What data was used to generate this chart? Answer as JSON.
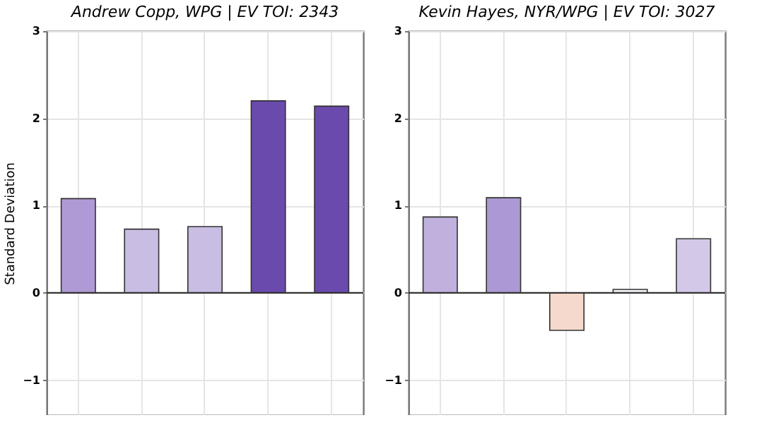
{
  "chart_data": [
    {
      "type": "bar",
      "title": "Andrew Copp, WPG  |  EV TOI: 2343",
      "ylabel": "Standard Deviation",
      "categories": [
        null,
        null,
        null,
        null,
        null
      ],
      "values": [
        1.08,
        0.73,
        0.76,
        2.2,
        2.14
      ],
      "colors": [
        "#b09ad6",
        "#c9bde3",
        "#c9bde3",
        "#6a4aad",
        "#6a4aad"
      ],
      "ylim": [
        -1.4,
        3
      ],
      "yticks": [
        -1,
        0,
        1,
        2,
        3
      ],
      "grid": true,
      "tick_labels": "y",
      "ref_lines": [
        {
          "axis": "y",
          "value": 0,
          "color": "#333333"
        }
      ]
    },
    {
      "type": "bar",
      "title": "Kevin Hayes, NYR/WPG  |  EV TOI: 3027",
      "categories": [
        null,
        null,
        null,
        null,
        null
      ],
      "values": [
        0.87,
        1.09,
        -0.43,
        0.04,
        0.62
      ],
      "colors": [
        "#c0b0dd",
        "#ac98d4",
        "#f5d9cc",
        "#f2eff6",
        "#d4c8e8"
      ],
      "ylim": [
        -1.4,
        3
      ],
      "yticks": [
        -1,
        0,
        1,
        2,
        3
      ],
      "grid": true,
      "tick_labels": "y",
      "ref_lines": [
        {
          "axis": "y",
          "value": 0,
          "color": "#333333"
        }
      ]
    }
  ]
}
